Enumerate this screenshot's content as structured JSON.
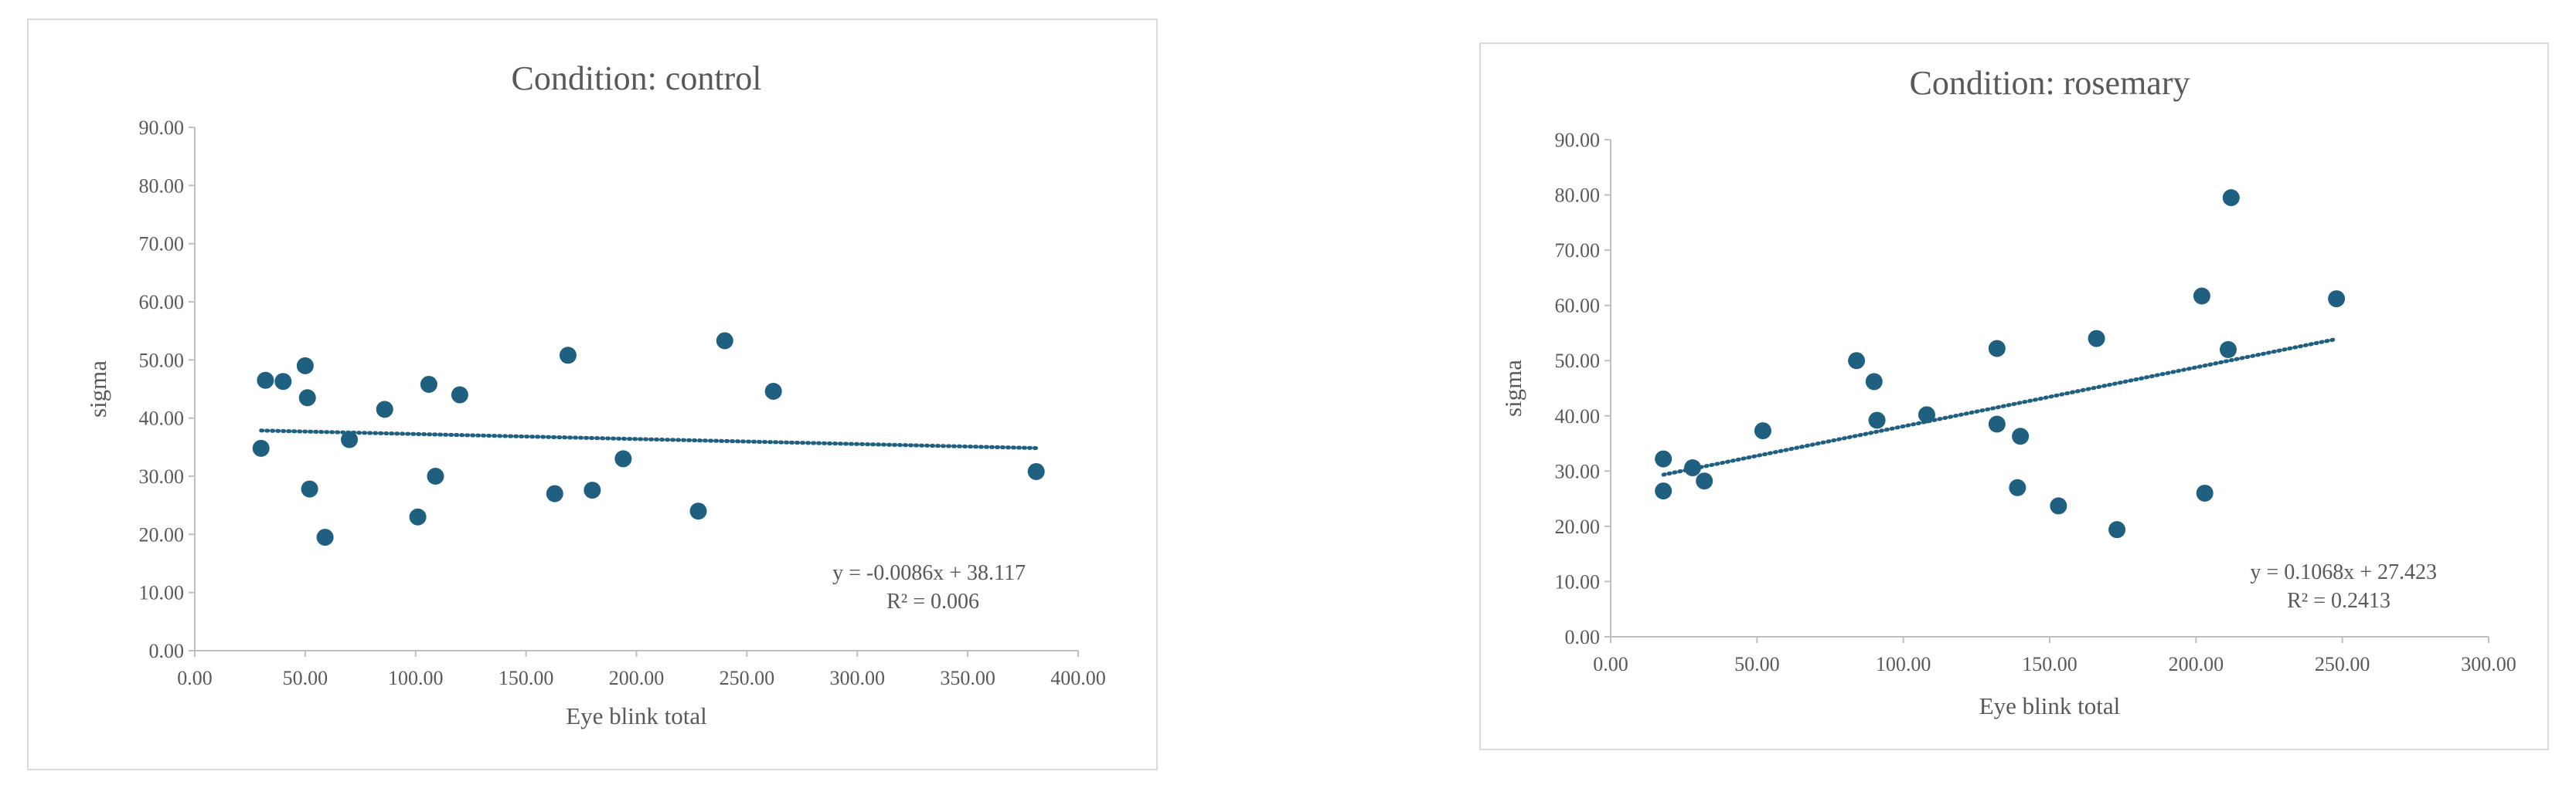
{
  "colors": {
    "point": "#1f5f7f",
    "trendline": "#1f5f7f",
    "axis": "#bfbfbf",
    "text": "#595959",
    "border": "#d9d9d9"
  },
  "chart_data": [
    {
      "type": "scatter",
      "title": "Condition: control",
      "xlabel": "Eye blink total",
      "ylabel": "sigma",
      "xlim": [
        0,
        400
      ],
      "ylim": [
        0,
        90
      ],
      "grid": false,
      "xticks": [
        "0.00",
        "50.00",
        "100.00",
        "150.00",
        "200.00",
        "250.00",
        "300.00",
        "350.00",
        "400.00"
      ],
      "yticks": [
        "0.00",
        "10.00",
        "20.00",
        "30.00",
        "40.00",
        "50.00",
        "60.00",
        "70.00",
        "80.00",
        "90.00"
      ],
      "points": [
        {
          "x": 30,
          "y": 34.8
        },
        {
          "x": 32,
          "y": 46.5
        },
        {
          "x": 40,
          "y": 46.3
        },
        {
          "x": 50,
          "y": 49.0
        },
        {
          "x": 51,
          "y": 43.5
        },
        {
          "x": 52,
          "y": 27.8
        },
        {
          "x": 59,
          "y": 19.5
        },
        {
          "x": 70,
          "y": 36.3
        },
        {
          "x": 86,
          "y": 41.5
        },
        {
          "x": 101,
          "y": 23.0
        },
        {
          "x": 106,
          "y": 45.8
        },
        {
          "x": 109,
          "y": 30.0
        },
        {
          "x": 120,
          "y": 44.0
        },
        {
          "x": 163,
          "y": 27.0
        },
        {
          "x": 169,
          "y": 50.8
        },
        {
          "x": 180,
          "y": 27.6
        },
        {
          "x": 194,
          "y": 33.0
        },
        {
          "x": 228,
          "y": 24.0
        },
        {
          "x": 240,
          "y": 53.3
        },
        {
          "x": 262,
          "y": 44.6
        },
        {
          "x": 381,
          "y": 30.8
        }
      ],
      "trendline": {
        "slope": -0.0086,
        "intercept": 38.117,
        "x_start": 30,
        "x_end": 381
      },
      "equation": "y = -0.0086x + 38.117",
      "r_squared": "R² = 0.006"
    },
    {
      "type": "scatter",
      "title": "Condition: rosemary",
      "xlabel": "Eye blink total",
      "ylabel": "sigma",
      "xlim": [
        0,
        300
      ],
      "ylim": [
        0,
        90
      ],
      "grid": false,
      "xticks": [
        "0.00",
        "50.00",
        "100.00",
        "150.00",
        "200.00",
        "250.00",
        "300.00"
      ],
      "yticks": [
        "0.00",
        "10.00",
        "20.00",
        "30.00",
        "40.00",
        "50.00",
        "60.00",
        "70.00",
        "80.00",
        "90.00"
      ],
      "points": [
        {
          "x": 18,
          "y": 32.2
        },
        {
          "x": 18,
          "y": 26.4
        },
        {
          "x": 28,
          "y": 30.6
        },
        {
          "x": 32,
          "y": 28.2
        },
        {
          "x": 52,
          "y": 37.3
        },
        {
          "x": 84,
          "y": 50.0
        },
        {
          "x": 90,
          "y": 46.2
        },
        {
          "x": 91,
          "y": 39.2
        },
        {
          "x": 108,
          "y": 40.2
        },
        {
          "x": 132,
          "y": 52.2
        },
        {
          "x": 132,
          "y": 38.5
        },
        {
          "x": 139,
          "y": 27.0
        },
        {
          "x": 140,
          "y": 36.3
        },
        {
          "x": 153,
          "y": 23.7
        },
        {
          "x": 166,
          "y": 54.0
        },
        {
          "x": 173,
          "y": 19.4
        },
        {
          "x": 202,
          "y": 61.7
        },
        {
          "x": 203,
          "y": 26.0
        },
        {
          "x": 211,
          "y": 52.0
        },
        {
          "x": 212,
          "y": 79.5
        },
        {
          "x": 248,
          "y": 61.2
        }
      ],
      "trendline": {
        "slope": 0.1068,
        "intercept": 27.423,
        "x_start": 18,
        "x_end": 248
      },
      "equation": "y = 0.1068x + 27.423",
      "r_squared": "R² = 0.2413"
    }
  ]
}
